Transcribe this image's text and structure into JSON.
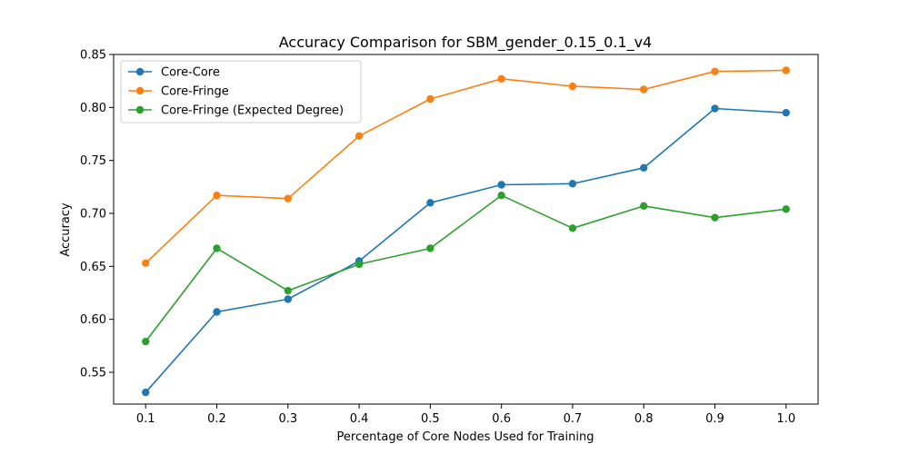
{
  "chart_data": {
    "type": "line",
    "title": "Accuracy Comparison for SBM_gender_0.15_0.1_v4",
    "xlabel": "Percentage of Core Nodes Used for Training",
    "ylabel": "Accuracy",
    "x": [
      0.1,
      0.2,
      0.3,
      0.4,
      0.5,
      0.6,
      0.7,
      0.8,
      0.9,
      1.0
    ],
    "x_ticks": [
      "0.1",
      "0.2",
      "0.3",
      "0.4",
      "0.5",
      "0.6",
      "0.7",
      "0.8",
      "0.9",
      "1.0"
    ],
    "xlim": [
      0.055,
      1.045
    ],
    "ylim": [
      0.52,
      0.85
    ],
    "y_ticks": [
      "0.55",
      "0.60",
      "0.65",
      "0.70",
      "0.75",
      "0.80",
      "0.85"
    ],
    "y_tick_values": [
      0.55,
      0.6,
      0.65,
      0.7,
      0.75,
      0.8,
      0.85
    ],
    "grid": false,
    "legend_position": "top-left",
    "series": [
      {
        "name": "Core-Core",
        "color": "#1f77b4",
        "values": [
          0.531,
          0.607,
          0.619,
          0.655,
          0.71,
          0.727,
          0.728,
          0.743,
          0.799,
          0.795
        ]
      },
      {
        "name": "Core-Fringe",
        "color": "#ff7f0e",
        "values": [
          0.653,
          0.717,
          0.714,
          0.773,
          0.808,
          0.827,
          0.82,
          0.817,
          0.834,
          0.835
        ]
      },
      {
        "name": "Core-Fringe (Expected Degree)",
        "color": "#2ca02c",
        "values": [
          0.579,
          0.667,
          0.627,
          0.652,
          0.667,
          0.717,
          0.686,
          0.707,
          0.696,
          0.704
        ]
      }
    ]
  }
}
